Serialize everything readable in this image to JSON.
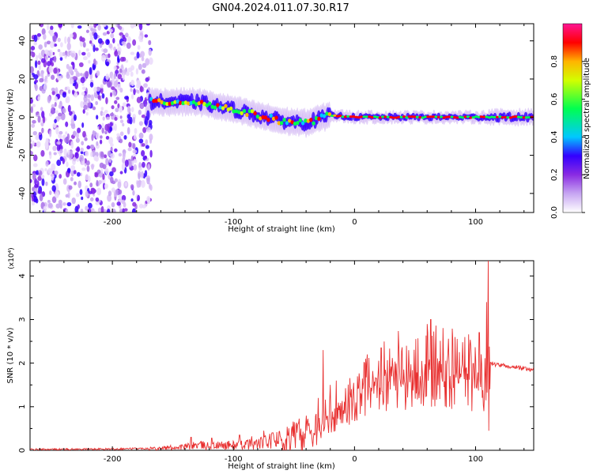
{
  "title": "GN04.2024.011.07.30.R17",
  "chart_data": [
    {
      "type": "heatmap",
      "xlabel": "Height of straight line (km)",
      "ylabel": "Frequency (Hz)",
      "xlim": [
        -268,
        148
      ],
      "ylim": [
        -50,
        49
      ],
      "xticks": [
        -200,
        -100,
        0,
        100
      ],
      "yticks": [
        -40,
        -20,
        0,
        20,
        40
      ],
      "colorbar": {
        "label": "Normalized spectral amplitude",
        "range": [
          0,
          1
        ],
        "ticks": [
          0.0,
          0.2,
          0.4,
          0.6,
          0.8
        ],
        "colors": [
          "#ffffff",
          "#c7a6f2",
          "#8a2be2",
          "#3300ff",
          "#00c8ff",
          "#00ff50",
          "#d2ff00",
          "#ffb400",
          "#ff0000",
          "#ff1493"
        ]
      },
      "features": [
        {
          "description_x": [
            -268,
            -168
          ],
          "value": "noise, amplitude 0.1-0.3"
        },
        {
          "signal_center_freq": [
            [
              -170,
              8
            ],
            [
              -130,
              8
            ],
            [
              -100,
              4
            ],
            [
              -60,
              -2
            ],
            [
              -40,
              -3
            ],
            [
              -20,
              1
            ],
            [
              0,
              0
            ],
            [
              110,
              0
            ],
            [
              148,
              0
            ]
          ]
        }
      ]
    },
    {
      "type": "line",
      "xlabel": "Height of straight line (km)",
      "ylabel": "SNR (10 * v/v)",
      "y_multiplier": "(x10⁴)",
      "xlim": [
        -268,
        148
      ],
      "ylim": [
        0,
        4.35
      ],
      "xticks": [
        -200,
        -100,
        0,
        100
      ],
      "yticks": [
        0,
        1,
        2,
        3,
        4
      ],
      "color": "#e83030",
      "envelope": [
        [
          -268,
          0.02
        ],
        [
          -200,
          0.03
        ],
        [
          -160,
          0.05
        ],
        [
          -140,
          0.08
        ],
        [
          -130,
          0.12
        ],
        [
          -120,
          0.1
        ],
        [
          -100,
          0.12
        ],
        [
          -80,
          0.15
        ],
        [
          -60,
          0.25
        ],
        [
          -45,
          0.45
        ],
        [
          -35,
          0.6
        ],
        [
          -25,
          0.8
        ],
        [
          -15,
          1.0
        ],
        [
          -5,
          1.25
        ],
        [
          5,
          1.5
        ],
        [
          15,
          1.75
        ],
        [
          25,
          1.95
        ],
        [
          35,
          2.05
        ],
        [
          45,
          2.1
        ],
        [
          55,
          2.15
        ],
        [
          65,
          2.15
        ],
        [
          75,
          2.1
        ],
        [
          85,
          2.05
        ],
        [
          95,
          2.0
        ],
        [
          105,
          2.0
        ],
        [
          111,
          2.0
        ],
        [
          112,
          2.0
        ],
        [
          120,
          1.95
        ],
        [
          135,
          1.9
        ],
        [
          148,
          1.85
        ]
      ],
      "spikes": [
        [
          -26,
          2.3
        ],
        [
          -30,
          1.2
        ],
        [
          -20,
          1.5
        ],
        [
          -15,
          1.6
        ],
        [
          22,
          2.35
        ],
        [
          43,
          2.4
        ],
        [
          63,
          3.0
        ],
        [
          63.5,
          1.0
        ],
        [
          83,
          2.6
        ],
        [
          91,
          2.6
        ],
        [
          103,
          2.7
        ],
        [
          109,
          3.4
        ],
        [
          110.5,
          4.35
        ],
        [
          111,
          0.45
        ],
        [
          -135,
          0.3
        ],
        [
          -118,
          0.28
        ],
        [
          -95,
          0.35
        ],
        [
          -85,
          0.32
        ],
        [
          -75,
          0.45
        ],
        [
          -68,
          0.4
        ]
      ]
    }
  ]
}
